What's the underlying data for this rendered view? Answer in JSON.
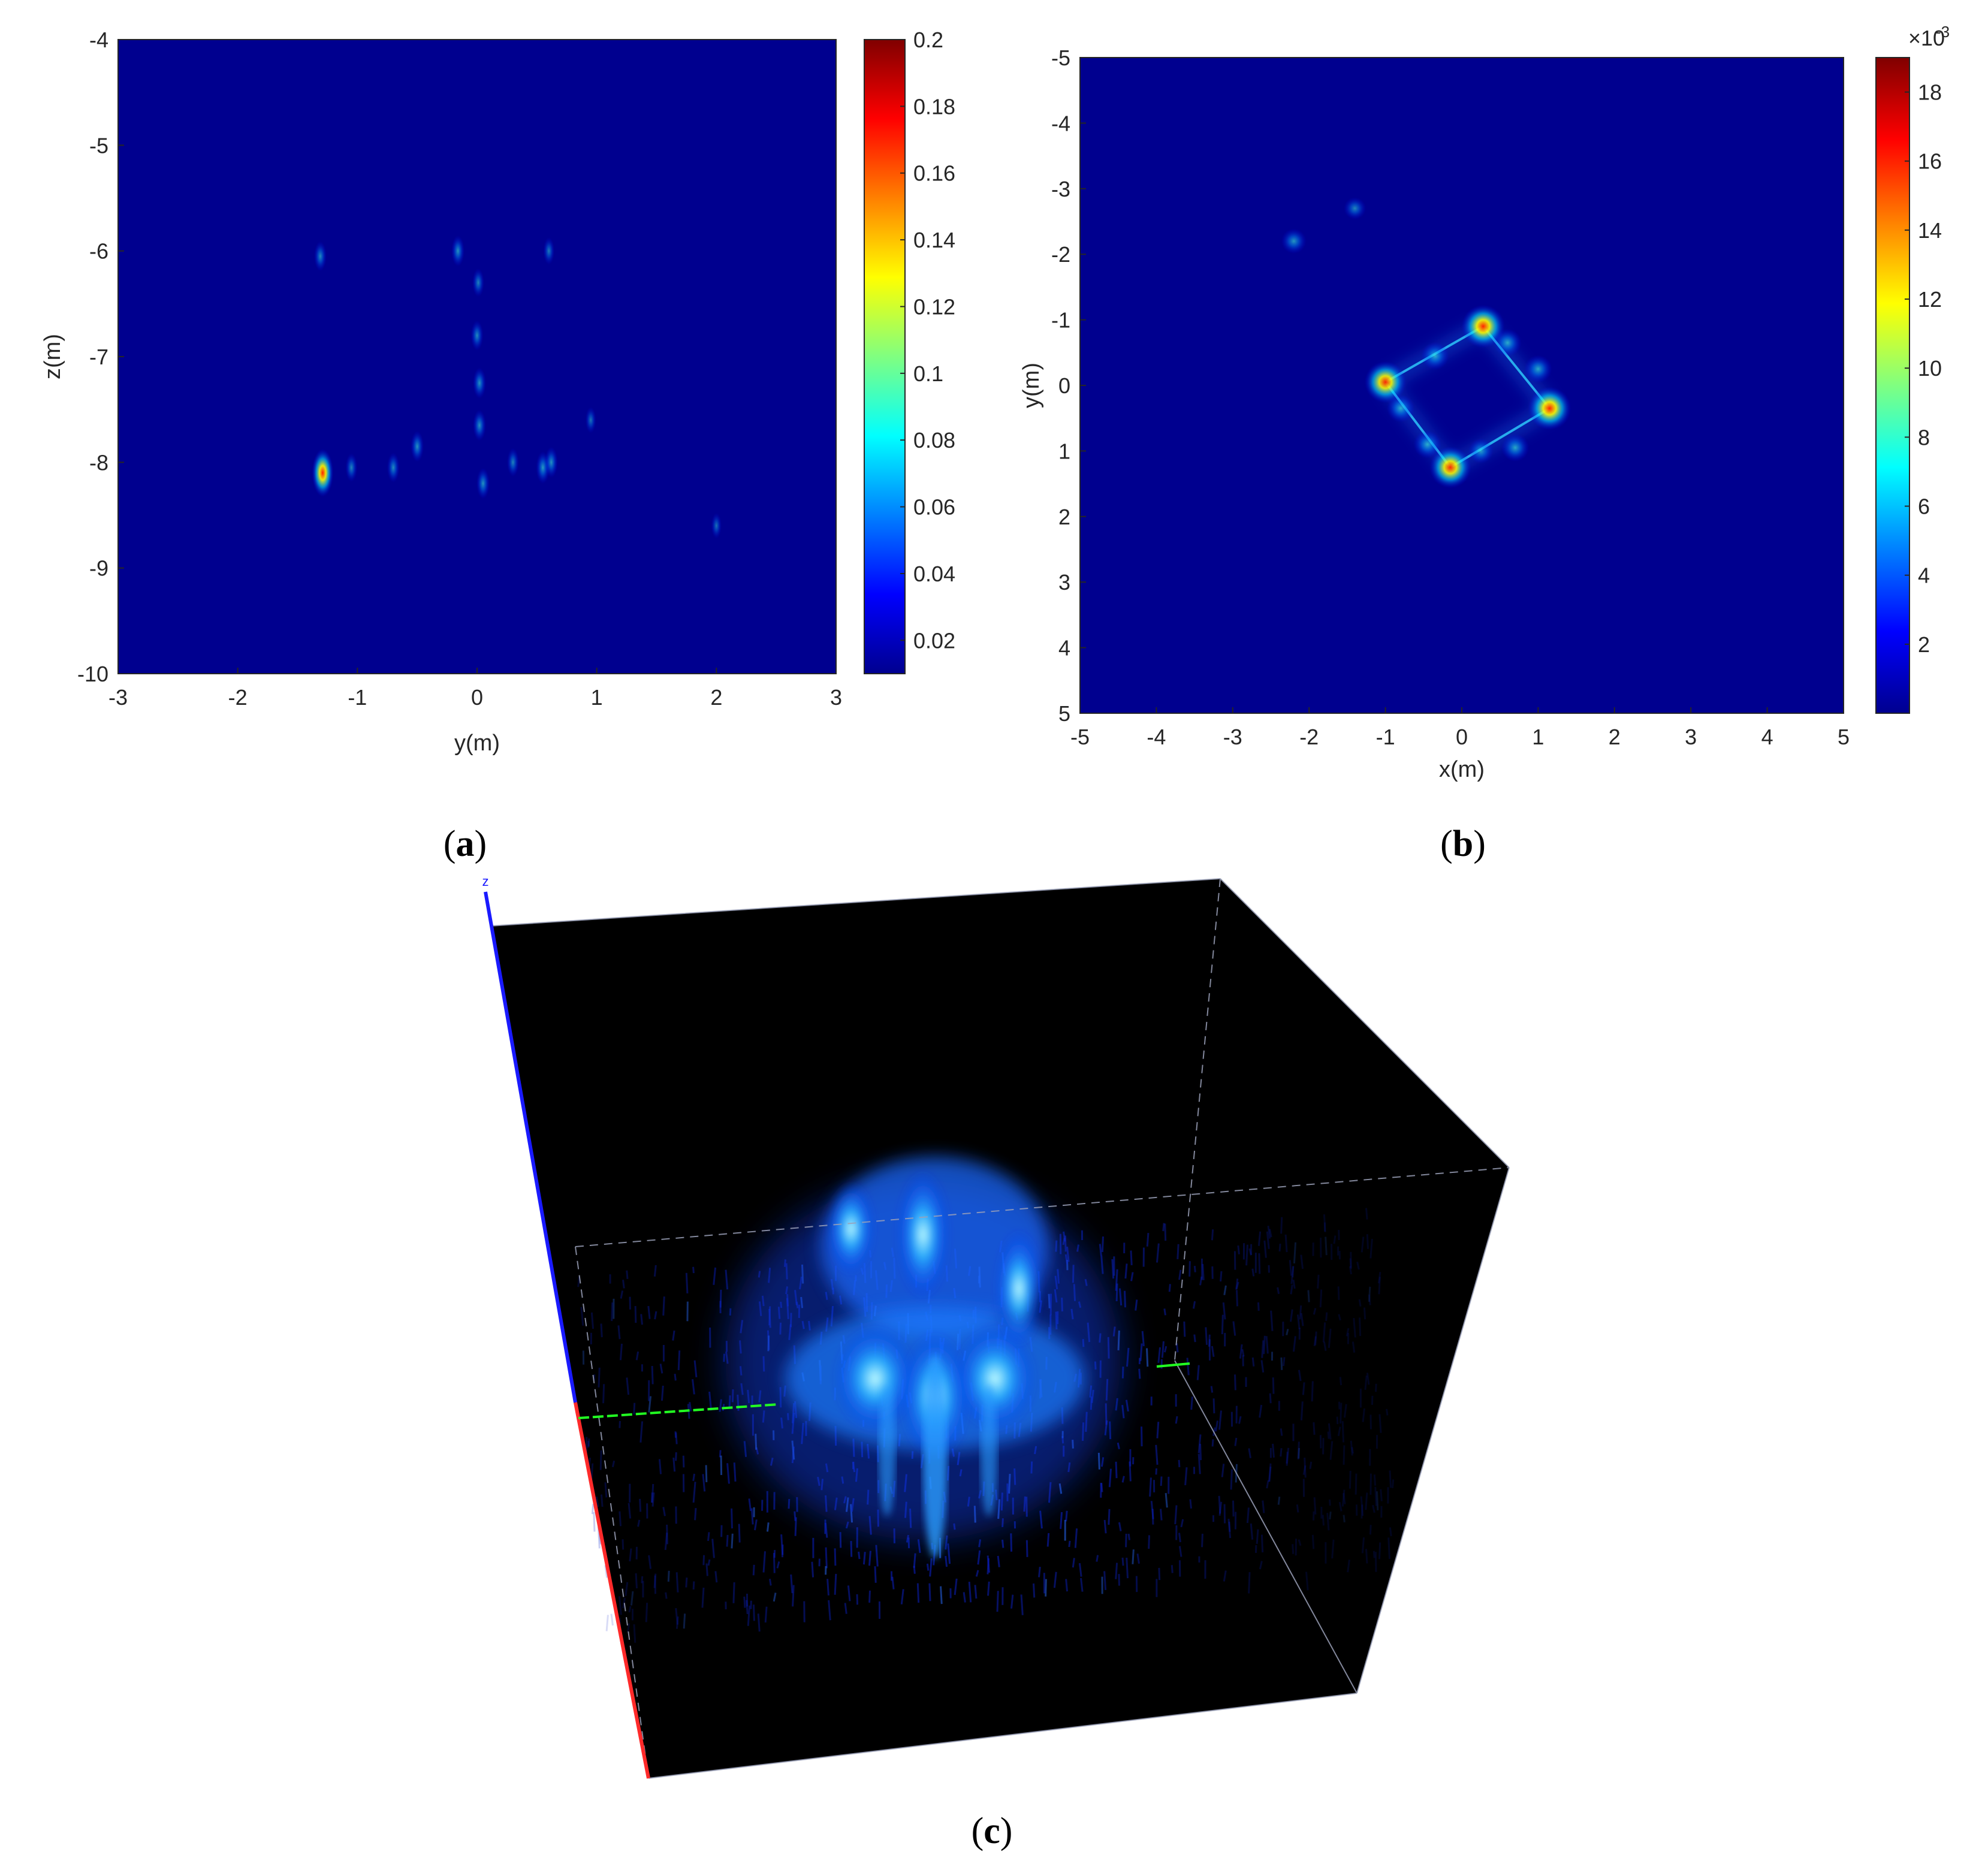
{
  "colors": {
    "map_background": "#00008f",
    "colormap": [
      "#00008f",
      "#0000ff",
      "#0080ff",
      "#00ffff",
      "#80ff80",
      "#ffff00",
      "#ff8000",
      "#ff0000",
      "#800000"
    ],
    "volume_background": "#000000",
    "volume_glow": "#3aa8ff",
    "axis_z": "#1a1aff",
    "axis_x": "#ff2a2a",
    "axis_y": "#22ff22"
  },
  "panels": {
    "a": {
      "label": "a"
    },
    "b": {
      "label": "b"
    },
    "c": {
      "label": "c"
    }
  },
  "volume_axis_glyph": "z",
  "chart_data": [
    {
      "type": "heatmap",
      "panel": "a",
      "xlabel": "y(m)",
      "ylabel": "z(m)",
      "xlim": [
        -3,
        3
      ],
      "ylim": [
        -10,
        -4
      ],
      "xticks": [
        "-3",
        "-2",
        "-1",
        "0",
        "1",
        "2",
        "3"
      ],
      "yticks": [
        "-4",
        "-5",
        "-6",
        "-7",
        "-8",
        "-9",
        "-10"
      ],
      "colorbar": {
        "range": [
          0.01,
          0.2
        ],
        "ticks": [
          "0.2",
          "0.18",
          "0.16",
          "0.14",
          "0.12",
          "0.1",
          "0.08",
          "0.06",
          "0.04",
          "0.02"
        ]
      },
      "hotspots": [
        {
          "x": -1.29,
          "y": -8.1,
          "v": 0.2
        },
        {
          "x": -1.31,
          "y": -6.05,
          "v": 0.05
        },
        {
          "x": -0.16,
          "y": -6.0,
          "v": 0.06
        },
        {
          "x": 0.01,
          "y": -6.3,
          "v": 0.04
        },
        {
          "x": 0.0,
          "y": -6.8,
          "v": 0.05
        },
        {
          "x": 0.02,
          "y": -7.25,
          "v": 0.06
        },
        {
          "x": 0.02,
          "y": -7.65,
          "v": 0.06
        },
        {
          "x": 0.6,
          "y": -6.0,
          "v": 0.03
        },
        {
          "x": -1.05,
          "y": -8.05,
          "v": 0.04
        },
        {
          "x": -0.7,
          "y": -8.05,
          "v": 0.05
        },
        {
          "x": -0.5,
          "y": -7.85,
          "v": 0.06
        },
        {
          "x": 0.05,
          "y": -8.2,
          "v": 0.06
        },
        {
          "x": 0.3,
          "y": -8.0,
          "v": 0.04
        },
        {
          "x": 0.55,
          "y": -8.05,
          "v": 0.07
        },
        {
          "x": 0.62,
          "y": -8.0,
          "v": 0.06
        },
        {
          "x": 0.95,
          "y": -7.6,
          "v": 0.02
        },
        {
          "x": 2.0,
          "y": -8.6,
          "v": 0.015
        }
      ]
    },
    {
      "type": "heatmap",
      "panel": "b",
      "xlabel": "x(m)",
      "ylabel": "y(m)",
      "xlim": [
        -5,
        5
      ],
      "ylim": [
        -5,
        5
      ],
      "xticks": [
        "-5",
        "-4",
        "-3",
        "-2",
        "-1",
        "0",
        "1",
        "2",
        "3",
        "4",
        "5"
      ],
      "yticks": [
        "-5",
        "-4",
        "-3",
        "-2",
        "-1",
        "0",
        "1",
        "2",
        "3",
        "4",
        "5"
      ],
      "colorbar": {
        "range": [
          0,
          0.019
        ],
        "ticks": [
          "18",
          "16",
          "14",
          "12",
          "10",
          "8",
          "6",
          "4",
          "2"
        ],
        "multiplier": "×10",
        "exponent": "-3"
      },
      "hotspots": [
        {
          "x": 0.28,
          "y": -0.9,
          "v": 0.019
        },
        {
          "x": -1.0,
          "y": -0.05,
          "v": 0.018
        },
        {
          "x": 1.15,
          "y": 0.35,
          "v": 0.019
        },
        {
          "x": -0.15,
          "y": 1.25,
          "v": 0.018
        },
        {
          "x": -0.35,
          "y": -0.45,
          "v": 0.008
        },
        {
          "x": 0.6,
          "y": -0.65,
          "v": 0.008
        },
        {
          "x": 1.0,
          "y": -0.25,
          "v": 0.008
        },
        {
          "x": -0.8,
          "y": 0.35,
          "v": 0.008
        },
        {
          "x": -0.45,
          "y": 0.9,
          "v": 0.008
        },
        {
          "x": 0.7,
          "y": 0.95,
          "v": 0.008
        },
        {
          "x": 0.25,
          "y": 1.0,
          "v": 0.006
        },
        {
          "x": -2.2,
          "y": -2.2,
          "v": 0.006
        },
        {
          "x": -1.4,
          "y": -2.7,
          "v": 0.004
        }
      ],
      "outline": [
        [
          0.28,
          -0.9
        ],
        [
          1.15,
          0.35
        ],
        [
          -0.15,
          1.25
        ],
        [
          -1.0,
          -0.05
        ]
      ]
    }
  ]
}
